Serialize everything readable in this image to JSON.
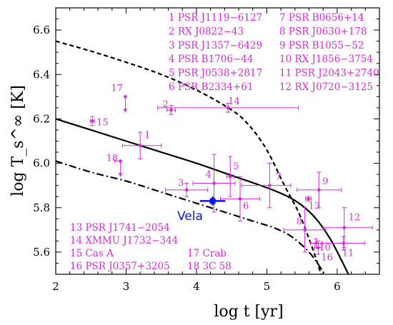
{
  "chart_data": {
    "type": "scatter",
    "xlabel": "log t [yr]",
    "ylabel": "log T_s^∞ [K]",
    "xlim": [
      2,
      6.6
    ],
    "ylim": [
      5.5,
      6.7
    ],
    "x_ticks": [
      "2",
      "3",
      "4",
      "5",
      "6"
    ],
    "y_ticks": [
      "5.6",
      "5.8",
      "6.0",
      "6.2",
      "6.4",
      "6.6"
    ],
    "grid": false,
    "colors": {
      "points": "#d62bd6",
      "vela": "#1010e0",
      "curves": "#000000"
    },
    "legend": {
      "placement": "top-right and bottom-left",
      "entries": [
        "1 PSR J1119−6127",
        "2 RX J0822−43",
        "3 PSR J1357−6429",
        "4 PSR B1706−44",
        "5 PSR J0538+2817",
        "6 PSR B2334+61",
        "7 PSR B0656+14",
        "8 PSR J0630+178",
        "9 PSR B1055−52",
        "10 RX J1856−3754",
        "11 PSR J2043+2740",
        "12 RX J0720−3125",
        "13 PSR J1741−2054",
        "14 XMMU J1732−344",
        "15 Cas A",
        "16 PSR J0357+3205",
        "17 Crab",
        "18 3C 58"
      ]
    },
    "vela": {
      "label": "Vela",
      "x": 4.23,
      "y": 5.83,
      "xerr": [
        0.18,
        0.18
      ],
      "yerr": [
        0.02,
        0.02
      ]
    },
    "points": [
      {
        "label": "1",
        "x": 3.2,
        "y": 6.08,
        "xerr": [
          0.25,
          0.3
        ],
        "yerr": [
          0.06,
          0.06
        ]
      },
      {
        "label": "2",
        "x": 3.64,
        "y": 6.24,
        "xerr": [
          0.06,
          0.06
        ],
        "yerr": [
          0.02,
          0.02
        ]
      },
      {
        "label": "3",
        "x": 3.86,
        "y": 5.88,
        "xerr": [
          0.3,
          0.3
        ],
        "yerr": [
          0.03,
          0.03
        ]
      },
      {
        "label": "4",
        "x": 4.25,
        "y": 5.91,
        "xerr": [
          0.3,
          0.3
        ],
        "yerr": [
          0.13,
          0.13
        ]
      },
      {
        "label": "5",
        "x": 4.48,
        "y": 5.94,
        "xerr": [
          0.05,
          0.05
        ],
        "yerr": [
          0.09,
          0.09
        ]
      },
      {
        "label": "6",
        "x": 4.62,
        "y": 5.84,
        "xerr": [
          0.28,
          0.28
        ],
        "yerr": [
          0.1,
          0.1
        ]
      },
      {
        "label": "7",
        "x": 5.04,
        "y": 5.9,
        "xerr": [
          0.4,
          0.3
        ],
        "yerr": [
          0.1,
          0.1
        ]
      },
      {
        "label": "8",
        "x": 5.54,
        "y": 5.7,
        "xerr": [
          0.3,
          0.3
        ],
        "yerr": [
          0.1,
          0.1
        ]
      },
      {
        "label": "9",
        "x": 5.74,
        "y": 5.88,
        "xerr": [
          0.31,
          0.32
        ],
        "yerr": [
          0.08,
          0.08
        ]
      },
      {
        "label": "10",
        "x": 5.7,
        "y": 5.64,
        "xerr": [
          0.08,
          0.08
        ],
        "yerr": [
          0.02,
          0.02
        ]
      },
      {
        "label": "11",
        "x": 6.09,
        "y": 5.64,
        "xerr": [
          0.3,
          0.3
        ],
        "yerr": [
          0.03,
          0.03
        ]
      },
      {
        "label": "12",
        "x": 6.1,
        "y": 5.71,
        "xerr": [
          0.3,
          0.4
        ],
        "yerr": [
          0.09,
          0.09
        ]
      },
      {
        "label": "13",
        "x": 5.59,
        "y": 5.84,
        "xerr": [
          0.04,
          0.04
        ],
        "yerr": [
          0.01,
          0.01
        ]
      },
      {
        "label": "14",
        "x": 4.45,
        "y": 6.25,
        "xerr": [
          1.0,
          1.0
        ],
        "yerr": [
          0.02,
          0.02
        ]
      },
      {
        "label": "15",
        "x": 2.52,
        "y": 6.19,
        "xerr": [
          0.03,
          0.03
        ],
        "yerr": [
          0.02,
          0.02
        ]
      },
      {
        "label": "16",
        "x": 5.73,
        "y": 5.62,
        "xerr": [
          0.05,
          0.05
        ],
        "yerr": [
          0.03,
          0.03
        ]
      },
      {
        "label": "17",
        "x": 2.99,
        "y": 6.3,
        "upper_limit": true
      },
      {
        "label": "18",
        "x": 2.92,
        "y": 6.01,
        "xerr": [
          0.08,
          0.0
        ],
        "upper_limit": true
      }
    ],
    "curves": [
      {
        "style": "dashed",
        "x": [
          2.0,
          2.5,
          3.0,
          3.5,
          4.0,
          4.5,
          4.75,
          5.0,
          5.25,
          5.45,
          5.6,
          5.72,
          5.8
        ],
        "y": [
          6.55,
          6.505,
          6.455,
          6.4,
          6.33,
          6.24,
          6.17,
          6.06,
          5.9,
          5.78,
          5.66,
          5.55,
          5.47
        ]
      },
      {
        "style": "solid",
        "x": [
          2.0,
          2.5,
          3.0,
          3.5,
          4.0,
          4.5,
          5.0,
          5.3,
          5.5,
          5.7,
          5.9,
          6.05,
          6.16
        ],
        "y": [
          6.2,
          6.15,
          6.1,
          6.05,
          6.0,
          5.945,
          5.89,
          5.85,
          5.81,
          5.75,
          5.66,
          5.57,
          5.5
        ]
      },
      {
        "style": "dashdot",
        "x": [
          2.0,
          2.5,
          3.0,
          3.5,
          4.0,
          4.5,
          4.9,
          5.1,
          5.3,
          5.45,
          5.6,
          5.72,
          5.82
        ],
        "y": [
          6.01,
          5.96,
          5.92,
          5.87,
          5.82,
          5.77,
          5.73,
          5.71,
          5.68,
          5.645,
          5.6,
          5.55,
          5.5
        ]
      }
    ]
  }
}
